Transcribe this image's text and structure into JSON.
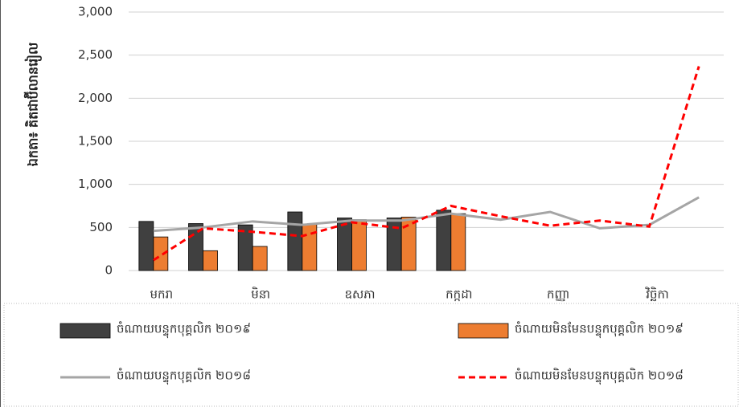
{
  "chart_data": {
    "type": "bar",
    "y_label": "ឯកតា៖ គិតជាប៊ីលានរៀល",
    "categories": [
      "មករា",
      null,
      "មិនា",
      null,
      "ឧសភា",
      null,
      "កក្កដា",
      null,
      "កញ្ញា",
      null,
      "វិច្ឆិកា",
      null
    ],
    "ylim": [
      0,
      3000
    ],
    "yticks": [
      0,
      {
        "value": 500,
        "label": "500"
      },
      {
        "value": 1000,
        "label": "1,000"
      },
      {
        "value": 1500,
        "label": "1,500"
      },
      {
        "value": 2000,
        "label": "2,000"
      },
      {
        "value": 2500,
        "label": "2,500"
      },
      {
        "value": 3000,
        "label": "3,000"
      }
    ],
    "grid": true,
    "series": [
      {
        "name": "ចំណាយបន្ទុកបុគ្គលិក ២០១៩",
        "type": "bar",
        "color": "#404040",
        "values": [
          570,
          545,
          530,
          680,
          610,
          610,
          700,
          null,
          null,
          null,
          null,
          null
        ]
      },
      {
        "name": "ចំណាយមិនមែនបន្ទុកបុគ្គលិក ២០១៩",
        "type": "bar",
        "color": "#ed7d31",
        "values": [
          390,
          230,
          280,
          540,
          590,
          620,
          660,
          null,
          null,
          null,
          null,
          null
        ]
      },
      {
        "name": "ចំណាយបន្ទុកបុគ្គលិក ២០១៨",
        "type": "line",
        "color": "#a5a5a5",
        "values": [
          460,
          500,
          570,
          530,
          580,
          580,
          660,
          590,
          680,
          490,
          530,
          850
        ]
      },
      {
        "name": "ចំណាយមិនមែនបន្ទុកបុគ្គលិក ២០១៨",
        "type": "line",
        "dashed": true,
        "color": "#ff0000",
        "values": [
          120,
          490,
          450,
          400,
          560,
          490,
          750,
          630,
          520,
          580,
          510,
          2370
        ]
      }
    ]
  }
}
